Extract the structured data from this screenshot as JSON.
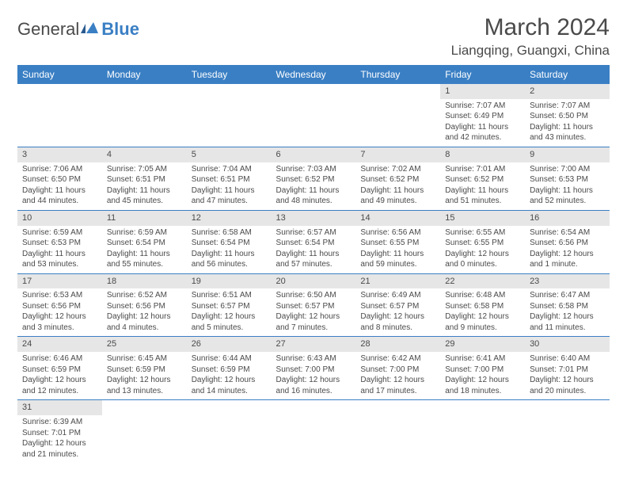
{
  "logo": {
    "part_a": "General",
    "part_b": "Blue"
  },
  "title": "March 2024",
  "location": "Liangqing, Guangxi, China",
  "colors": {
    "header_bg": "#3a7fc4",
    "header_text": "#ffffff",
    "daynum_bg": "#e6e6e6",
    "text": "#4a4a4a",
    "border": "#3a7fc4",
    "background": "#ffffff"
  },
  "typography": {
    "title_fontsize": 30,
    "location_fontsize": 17,
    "weekday_fontsize": 12,
    "cell_fontsize": 10,
    "logo_fontsize": 22
  },
  "weekdays": [
    "Sunday",
    "Monday",
    "Tuesday",
    "Wednesday",
    "Thursday",
    "Friday",
    "Saturday"
  ],
  "grid": [
    [
      null,
      null,
      null,
      null,
      null,
      {
        "n": "1",
        "sr": "Sunrise: 7:07 AM",
        "ss": "Sunset: 6:49 PM",
        "dl": "Daylight: 11 hours and 42 minutes."
      },
      {
        "n": "2",
        "sr": "Sunrise: 7:07 AM",
        "ss": "Sunset: 6:50 PM",
        "dl": "Daylight: 11 hours and 43 minutes."
      }
    ],
    [
      {
        "n": "3",
        "sr": "Sunrise: 7:06 AM",
        "ss": "Sunset: 6:50 PM",
        "dl": "Daylight: 11 hours and 44 minutes."
      },
      {
        "n": "4",
        "sr": "Sunrise: 7:05 AM",
        "ss": "Sunset: 6:51 PM",
        "dl": "Daylight: 11 hours and 45 minutes."
      },
      {
        "n": "5",
        "sr": "Sunrise: 7:04 AM",
        "ss": "Sunset: 6:51 PM",
        "dl": "Daylight: 11 hours and 47 minutes."
      },
      {
        "n": "6",
        "sr": "Sunrise: 7:03 AM",
        "ss": "Sunset: 6:52 PM",
        "dl": "Daylight: 11 hours and 48 minutes."
      },
      {
        "n": "7",
        "sr": "Sunrise: 7:02 AM",
        "ss": "Sunset: 6:52 PM",
        "dl": "Daylight: 11 hours and 49 minutes."
      },
      {
        "n": "8",
        "sr": "Sunrise: 7:01 AM",
        "ss": "Sunset: 6:52 PM",
        "dl": "Daylight: 11 hours and 51 minutes."
      },
      {
        "n": "9",
        "sr": "Sunrise: 7:00 AM",
        "ss": "Sunset: 6:53 PM",
        "dl": "Daylight: 11 hours and 52 minutes."
      }
    ],
    [
      {
        "n": "10",
        "sr": "Sunrise: 6:59 AM",
        "ss": "Sunset: 6:53 PM",
        "dl": "Daylight: 11 hours and 53 minutes."
      },
      {
        "n": "11",
        "sr": "Sunrise: 6:59 AM",
        "ss": "Sunset: 6:54 PM",
        "dl": "Daylight: 11 hours and 55 minutes."
      },
      {
        "n": "12",
        "sr": "Sunrise: 6:58 AM",
        "ss": "Sunset: 6:54 PM",
        "dl": "Daylight: 11 hours and 56 minutes."
      },
      {
        "n": "13",
        "sr": "Sunrise: 6:57 AM",
        "ss": "Sunset: 6:54 PM",
        "dl": "Daylight: 11 hours and 57 minutes."
      },
      {
        "n": "14",
        "sr": "Sunrise: 6:56 AM",
        "ss": "Sunset: 6:55 PM",
        "dl": "Daylight: 11 hours and 59 minutes."
      },
      {
        "n": "15",
        "sr": "Sunrise: 6:55 AM",
        "ss": "Sunset: 6:55 PM",
        "dl": "Daylight: 12 hours and 0 minutes."
      },
      {
        "n": "16",
        "sr": "Sunrise: 6:54 AM",
        "ss": "Sunset: 6:56 PM",
        "dl": "Daylight: 12 hours and 1 minute."
      }
    ],
    [
      {
        "n": "17",
        "sr": "Sunrise: 6:53 AM",
        "ss": "Sunset: 6:56 PM",
        "dl": "Daylight: 12 hours and 3 minutes."
      },
      {
        "n": "18",
        "sr": "Sunrise: 6:52 AM",
        "ss": "Sunset: 6:56 PM",
        "dl": "Daylight: 12 hours and 4 minutes."
      },
      {
        "n": "19",
        "sr": "Sunrise: 6:51 AM",
        "ss": "Sunset: 6:57 PM",
        "dl": "Daylight: 12 hours and 5 minutes."
      },
      {
        "n": "20",
        "sr": "Sunrise: 6:50 AM",
        "ss": "Sunset: 6:57 PM",
        "dl": "Daylight: 12 hours and 7 minutes."
      },
      {
        "n": "21",
        "sr": "Sunrise: 6:49 AM",
        "ss": "Sunset: 6:57 PM",
        "dl": "Daylight: 12 hours and 8 minutes."
      },
      {
        "n": "22",
        "sr": "Sunrise: 6:48 AM",
        "ss": "Sunset: 6:58 PM",
        "dl": "Daylight: 12 hours and 9 minutes."
      },
      {
        "n": "23",
        "sr": "Sunrise: 6:47 AM",
        "ss": "Sunset: 6:58 PM",
        "dl": "Daylight: 12 hours and 11 minutes."
      }
    ],
    [
      {
        "n": "24",
        "sr": "Sunrise: 6:46 AM",
        "ss": "Sunset: 6:59 PM",
        "dl": "Daylight: 12 hours and 12 minutes."
      },
      {
        "n": "25",
        "sr": "Sunrise: 6:45 AM",
        "ss": "Sunset: 6:59 PM",
        "dl": "Daylight: 12 hours and 13 minutes."
      },
      {
        "n": "26",
        "sr": "Sunrise: 6:44 AM",
        "ss": "Sunset: 6:59 PM",
        "dl": "Daylight: 12 hours and 14 minutes."
      },
      {
        "n": "27",
        "sr": "Sunrise: 6:43 AM",
        "ss": "Sunset: 7:00 PM",
        "dl": "Daylight: 12 hours and 16 minutes."
      },
      {
        "n": "28",
        "sr": "Sunrise: 6:42 AM",
        "ss": "Sunset: 7:00 PM",
        "dl": "Daylight: 12 hours and 17 minutes."
      },
      {
        "n": "29",
        "sr": "Sunrise: 6:41 AM",
        "ss": "Sunset: 7:00 PM",
        "dl": "Daylight: 12 hours and 18 minutes."
      },
      {
        "n": "30",
        "sr": "Sunrise: 6:40 AM",
        "ss": "Sunset: 7:01 PM",
        "dl": "Daylight: 12 hours and 20 minutes."
      }
    ],
    [
      {
        "n": "31",
        "sr": "Sunrise: 6:39 AM",
        "ss": "Sunset: 7:01 PM",
        "dl": "Daylight: 12 hours and 21 minutes."
      },
      null,
      null,
      null,
      null,
      null,
      null
    ]
  ]
}
